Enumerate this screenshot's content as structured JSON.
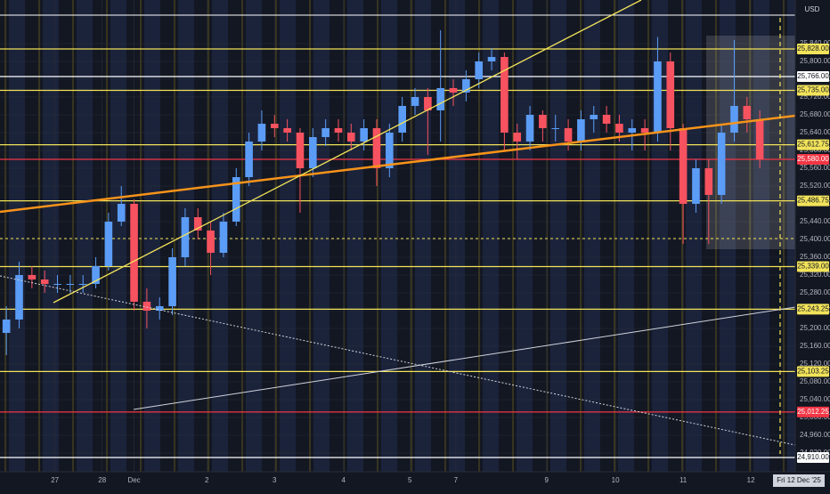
{
  "chart_data": {
    "type": "candlestick",
    "currency": "USD",
    "crosshair_label": "Fri 12 Dec '25",
    "up_color": "#5b9cf6",
    "down_color": "#f7525f",
    "grid": true,
    "xlim": [
      0,
      62
    ],
    "xticks": [
      {
        "value": 4.3,
        "label": "27"
      },
      {
        "value": 8,
        "label": "28"
      },
      {
        "value": 10.5,
        "label": "Dec"
      },
      {
        "value": 16.2,
        "label": "2"
      },
      {
        "value": 21.5,
        "label": "3"
      },
      {
        "value": 26.9,
        "label": "4"
      },
      {
        "value": 32.1,
        "label": "5"
      },
      {
        "value": 35.7,
        "label": "7"
      },
      {
        "value": 42.8,
        "label": "9"
      },
      {
        "value": 48.2,
        "label": "10"
      },
      {
        "value": 53.5,
        "label": "11"
      },
      {
        "value": 58.8,
        "label": "12"
      }
    ],
    "ylim": [
      24878,
      25938
    ],
    "yticks": [
      {
        "value": 24920,
        "label": "24,920.00"
      },
      {
        "value": 24960,
        "label": "24,960.00"
      },
      {
        "value": 25000,
        "label": "25,000.00"
      },
      {
        "value": 25040,
        "label": "25,040.00"
      },
      {
        "value": 25080,
        "label": "25,080.00"
      },
      {
        "value": 25120,
        "label": "25,120.00"
      },
      {
        "value": 25160,
        "label": "25,160.00"
      },
      {
        "value": 25200,
        "label": "25,200.00"
      },
      {
        "value": 25240,
        "label": "25,240.00"
      },
      {
        "value": 25280,
        "label": "25,280.00"
      },
      {
        "value": 25320,
        "label": "25,320.00"
      },
      {
        "value": 25360,
        "label": "25,360.00"
      },
      {
        "value": 25400,
        "label": "25,400.00"
      },
      {
        "value": 25440,
        "label": "25,440.00"
      },
      {
        "value": 25480,
        "label": "25,480.00"
      },
      {
        "value": 25520,
        "label": "25,520.00"
      },
      {
        "value": 25560,
        "label": "25,560.00"
      },
      {
        "value": 25600,
        "label": "25,600.00"
      },
      {
        "value": 25640,
        "label": "25,640.00"
      },
      {
        "value": 25680,
        "label": "25,680.00"
      },
      {
        "value": 25720,
        "label": "25,720.00"
      },
      {
        "value": 25760,
        "label": "25,760.00"
      },
      {
        "value": 25800,
        "label": "25,800.00"
      },
      {
        "value": 25840,
        "label": "25,840.00"
      }
    ],
    "open": [
      25190,
      25220,
      25320,
      25310,
      25300,
      25300,
      25300,
      25300,
      25340,
      25440,
      25480,
      25260,
      25240,
      25250,
      25360,
      25450,
      25420,
      25370,
      25440,
      25540,
      25620,
      25660,
      25650,
      25640,
      25560,
      25630,
      25650,
      25640,
      25620,
      25650,
      25560,
      25640,
      25700,
      25720,
      25690,
      25740,
      25730,
      25760,
      25800,
      25810,
      25640,
      25620,
      25680,
      25650,
      25650,
      25620,
      25670,
      25680,
      25660,
      25640,
      25650,
      25640,
      25800,
      25650,
      25480,
      25560,
      25500,
      25640,
      25700,
      25670
    ],
    "high": [
      25250,
      25350,
      25340,
      25330,
      25320,
      25320,
      25320,
      25360,
      25460,
      25520,
      25490,
      25290,
      25270,
      25380,
      25470,
      25470,
      25440,
      25460,
      25560,
      25640,
      25690,
      25680,
      25670,
      25650,
      25650,
      25670,
      25670,
      25660,
      25670,
      25670,
      25660,
      25720,
      25740,
      25740,
      25870,
      25760,
      25780,
      25820,
      25830,
      25820,
      25660,
      25700,
      25690,
      25680,
      25670,
      25690,
      25700,
      25700,
      25680,
      25670,
      25670,
      25855,
      25820,
      25660,
      25580,
      25580,
      25660,
      25848,
      25720,
      25690
    ],
    "low": [
      25140,
      25200,
      25290,
      25280,
      25280,
      25280,
      25280,
      25290,
      25330,
      25430,
      25240,
      25200,
      25220,
      25230,
      25340,
      25400,
      25320,
      25360,
      25430,
      25520,
      25600,
      25630,
      25620,
      25460,
      25540,
      25610,
      25620,
      25600,
      25600,
      25520,
      25540,
      25620,
      25680,
      25590,
      25620,
      25700,
      25710,
      25740,
      25780,
      25600,
      25580,
      25600,
      25620,
      25620,
      25600,
      25600,
      25640,
      25640,
      25620,
      25600,
      25600,
      25620,
      25600,
      25390,
      25460,
      25390,
      25480,
      25620,
      25640,
      25560
    ],
    "close": [
      25220,
      25320,
      25310,
      25300,
      25300,
      25300,
      25300,
      25340,
      25440,
      25480,
      25260,
      25240,
      25250,
      25360,
      25450,
      25420,
      25370,
      25440,
      25540,
      25620,
      25660,
      25650,
      25640,
      25560,
      25630,
      25650,
      25640,
      25620,
      25650,
      25560,
      25640,
      25700,
      25720,
      25690,
      25740,
      25730,
      25760,
      25800,
      25810,
      25640,
      25620,
      25680,
      25650,
      25650,
      25620,
      25670,
      25680,
      25660,
      25640,
      25650,
      25640,
      25800,
      25650,
      25480,
      25560,
      25500,
      25640,
      25700,
      25670,
      25580
    ],
    "levels": [
      {
        "price": 25828,
        "label": "25,828.00",
        "color": "#f2e35a"
      },
      {
        "price": 25766,
        "label": "25,766.00",
        "color": "#ffffff"
      },
      {
        "price": 25735,
        "label": "25,735.00",
        "color": "#f2e35a"
      },
      {
        "price": 25612.75,
        "label": "25,612.75",
        "color": "#f2e35a"
      },
      {
        "price": 25580,
        "label": "25,580.00",
        "color": "#f23645"
      },
      {
        "price": 25486.75,
        "label": "25,486.75",
        "color": "#f2e35a"
      },
      {
        "price": 25339,
        "label": "25,339.00",
        "color": "#f2e35a"
      },
      {
        "price": 25243.25,
        "label": "25,243.25",
        "color": "#f2e35a"
      },
      {
        "price": 25103.25,
        "label": "25,103.25",
        "color": "#f2e35a"
      },
      {
        "price": 25012.25,
        "label": "25,012.25",
        "color": "#f23645"
      },
      {
        "price": 24910,
        "label": "24,910.00",
        "color": "#ffffff"
      }
    ]
  }
}
